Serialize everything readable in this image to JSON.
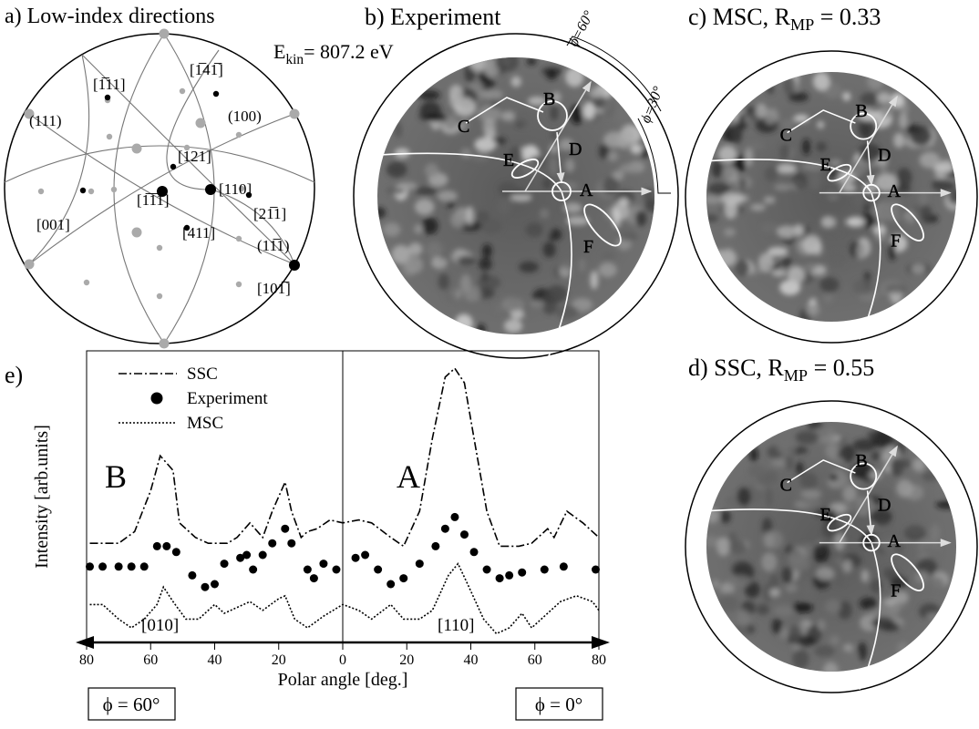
{
  "panels": {
    "a": {
      "title": "a)  Low-index directions",
      "energy": {
        "symbol": "E",
        "sub": "kin",
        "rest": "= 807.2 eV"
      },
      "labels": [
        "(111)",
        "[1̅11]",
        "[1̅41̅]",
        "(100)",
        "[121]",
        "[110]",
        "[1̅1̅1]",
        "[001]",
        "[411]",
        "[21̅1]",
        "(11̅1)",
        "[101̅]"
      ]
    },
    "b": {
      "title": "b)  Experiment",
      "phi": [
        "ϕ=60°",
        "ϕ=30°"
      ],
      "features": [
        "A",
        "B",
        "C",
        "D",
        "E",
        "F"
      ]
    },
    "c": {
      "title": {
        "main": "c)  MSC, R",
        "sub": "MP",
        "rest": " = 0.33"
      },
      "features": [
        "A",
        "B",
        "C",
        "D",
        "E",
        "F"
      ]
    },
    "d": {
      "title": {
        "main": "d)  SSC, R",
        "sub": "MP",
        "rest": " = 0.55"
      },
      "features": [
        "A",
        "B",
        "C",
        "D",
        "E",
        "F"
      ]
    }
  },
  "chart_data": {
    "type": "line",
    "panel_label": "e)",
    "xlabel": "Polar angle [deg.]",
    "ylabel": "Intensity [arb.units]",
    "xlim": [
      -80,
      80
    ],
    "ylim": [
      0,
      100
    ],
    "xticks": [
      {
        "value": -80,
        "label": "80"
      },
      {
        "value": -60,
        "label": "60"
      },
      {
        "value": -40,
        "label": "40"
      },
      {
        "value": -20,
        "label": "20"
      },
      0,
      20,
      40,
      60,
      80
    ],
    "legend": "upper left",
    "series": [
      {
        "name": "SSC",
        "style": "dashdot",
        "color": "#000000",
        "x": [
          -79,
          -70,
          -65,
          -60,
          -57,
          -53,
          -51,
          -46,
          -42,
          -36,
          -33,
          -29,
          -25,
          -22,
          -18,
          -16,
          -13,
          -11,
          -8,
          -4,
          0,
          5,
          9,
          15,
          19,
          24,
          28,
          32,
          35,
          38,
          41,
          45,
          49,
          55,
          59,
          64,
          66,
          70,
          75,
          80
        ],
        "values": [
          34,
          34,
          38,
          52,
          64,
          59,
          41,
          36,
          34,
          34,
          36,
          41,
          36,
          45,
          55,
          45,
          36,
          38,
          39,
          42,
          41,
          42,
          41,
          36,
          33,
          45,
          70,
          91,
          94,
          89,
          70,
          45,
          33,
          33,
          34,
          39,
          36,
          45,
          41,
          36
        ]
      },
      {
        "name": "Experiment",
        "style": "dots",
        "color": "#000000",
        "x": [
          -79,
          -75,
          -70,
          -66,
          -62,
          -58,
          -55,
          -52,
          -47,
          -43,
          -40,
          -37,
          -32,
          -30,
          -28,
          -25,
          -22,
          -18,
          -16,
          -11,
          -9,
          -6,
          -2,
          4,
          7,
          11,
          15,
          19,
          24,
          29,
          32,
          35,
          38,
          41,
          45,
          49,
          52,
          56,
          63,
          69,
          79
        ],
        "values": [
          26,
          26,
          26,
          26,
          26,
          33,
          33,
          31,
          23,
          19,
          20,
          27,
          29,
          30,
          25,
          30,
          34,
          39,
          34,
          25,
          22,
          27,
          25,
          29,
          30,
          25,
          20,
          22,
          27,
          33,
          39,
          43,
          37,
          31,
          25,
          22,
          23,
          24,
          25,
          26,
          25
        ]
      },
      {
        "name": "MSC",
        "style": "dotted",
        "color": "#000000",
        "x": [
          -79,
          -75,
          -70,
          -66,
          -62,
          -58,
          -56,
          -53,
          -49,
          -45,
          -40,
          -37,
          -33,
          -29,
          -25,
          -20,
          -18,
          -15,
          -11,
          -6,
          0,
          5,
          9,
          15,
          19,
          24,
          28,
          33,
          36,
          39,
          44,
          48,
          52,
          56,
          59,
          63,
          68,
          73,
          78,
          80
        ],
        "values": [
          13,
          13,
          8,
          5,
          8,
          13,
          19,
          14,
          8,
          8,
          13,
          10,
          12,
          14,
          11,
          15,
          16,
          8,
          5,
          9,
          13,
          11,
          8,
          13,
          8,
          8,
          11,
          23,
          27,
          20,
          8,
          3,
          5,
          10,
          5,
          9,
          14,
          16,
          14,
          11
        ]
      }
    ],
    "annotations": [
      "B",
      "A",
      "[010]",
      "[110]"
    ],
    "phi_labels": [
      "ϕ = 60°",
      "ϕ = 0°"
    ]
  }
}
